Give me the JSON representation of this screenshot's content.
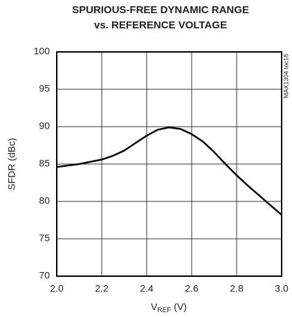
{
  "chart_data": {
    "type": "line",
    "title": [
      "SPURIOUS-FREE DYNAMIC RANGE",
      "vs. REFERENCE VOLTAGE"
    ],
    "y_label": "SFDR (dBc)",
    "x_label": {
      "main": "V",
      "subscript": "REF",
      "unit": " (V)"
    },
    "annotation": "MAX1304 toc18",
    "x": [
      2.0,
      2.05,
      2.1,
      2.15,
      2.2,
      2.25,
      2.3,
      2.35,
      2.4,
      2.45,
      2.5,
      2.55,
      2.6,
      2.65,
      2.7,
      2.75,
      2.8,
      2.85,
      2.9,
      2.95,
      3.0
    ],
    "series": [
      {
        "color": "#000000",
        "values": [
          84.6,
          84.8,
          85.0,
          85.3,
          85.6,
          86.1,
          86.8,
          87.8,
          88.8,
          89.6,
          89.9,
          89.7,
          89.0,
          88.0,
          86.6,
          85.0,
          83.5,
          82.1,
          80.8,
          79.5,
          78.2
        ]
      }
    ],
    "xlim": [
      2.0,
      3.0
    ],
    "xticks": [
      {
        "value": 2.0,
        "label": "2.0"
      },
      2.2,
      2.4,
      2.6,
      2.8,
      {
        "value": 3.0,
        "label": "3.0"
      }
    ],
    "ylim": [
      70,
      100
    ],
    "yticks": [
      70,
      75,
      80,
      85,
      90,
      95,
      100
    ],
    "grid": true
  }
}
